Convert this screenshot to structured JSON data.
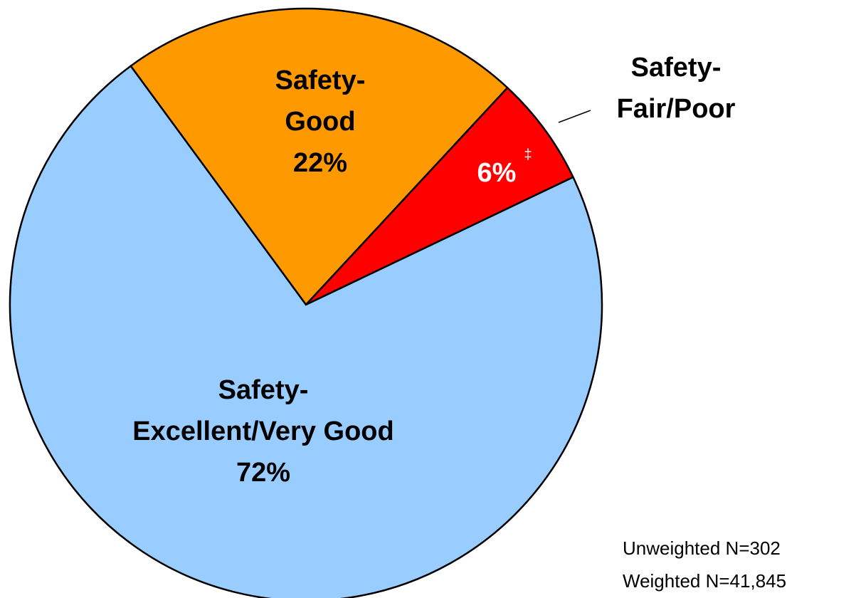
{
  "chart_data": {
    "type": "pie",
    "categories": [
      "Safety-\nGood",
      "Safety-\nFair/Poor",
      "Safety-\nExcellent/Very Good"
    ],
    "values": [
      22,
      6,
      72
    ],
    "value_labels": [
      "22%",
      "6%",
      "72%"
    ],
    "colors": [
      "#ff9900",
      "#ff0000",
      "#99ccff"
    ],
    "annotations": [
      "‡"
    ],
    "notes": [
      "Unweighted N=302",
      "Weighted N=41,845"
    ]
  }
}
